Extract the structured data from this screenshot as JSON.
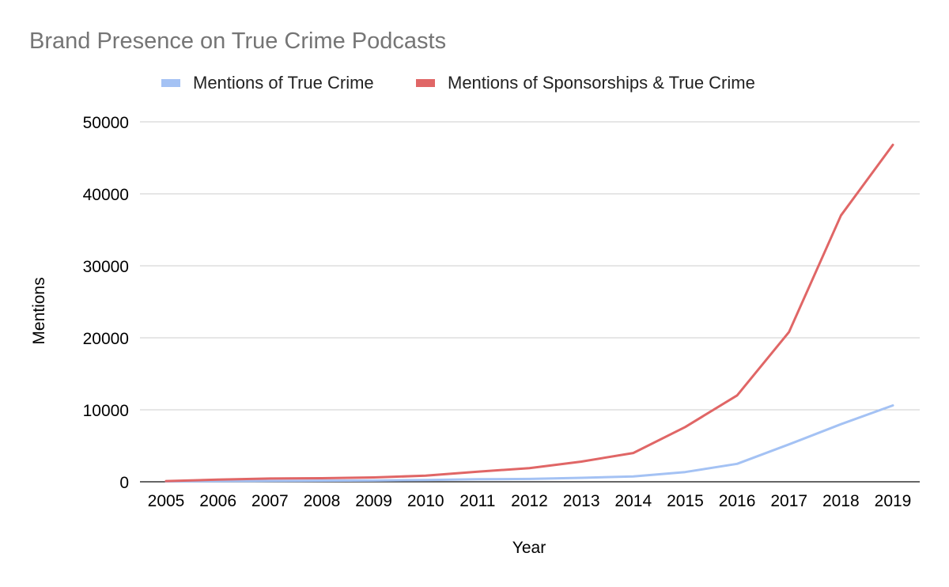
{
  "chart_data": {
    "type": "line",
    "title": "Brand Presence on True Crime Podcasts",
    "xlabel": "Year",
    "ylabel": "Mentions",
    "categories": [
      "2005",
      "2006",
      "2007",
      "2008",
      "2009",
      "2010",
      "2011",
      "2012",
      "2013",
      "2014",
      "2015",
      "2016",
      "2017",
      "2018",
      "2019"
    ],
    "yticks": [
      "0",
      "10000",
      "20000",
      "30000",
      "40000",
      "50000"
    ],
    "ylim": [
      0,
      50000
    ],
    "grid": true,
    "legend_position": "top",
    "series": [
      {
        "name": "Mentions of True Crime",
        "color": "#a4c2f4",
        "values": [
          50,
          80,
          120,
          150,
          180,
          250,
          350,
          400,
          550,
          750,
          1350,
          2500,
          5200,
          8000,
          10600
        ]
      },
      {
        "name": "Mentions of Sponsorships & True Crime",
        "color": "#e06666",
        "values": [
          100,
          300,
          450,
          500,
          600,
          850,
          1400,
          1900,
          2800,
          4000,
          7600,
          12000,
          20800,
          37000,
          46800
        ]
      }
    ]
  }
}
